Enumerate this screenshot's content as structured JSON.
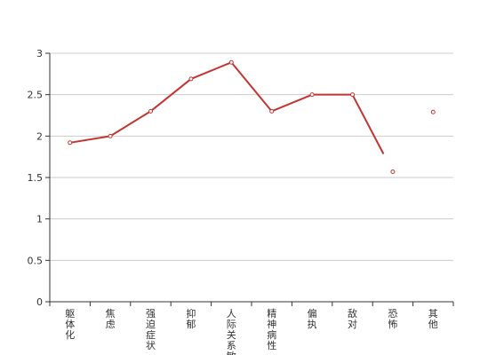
{
  "chart_data": {
    "type": "line",
    "title": "",
    "xlabel": "",
    "ylabel": "",
    "categories": [
      "躯体化",
      "焦虑",
      "强迫症状",
      "抑郁",
      "人际关系敏感",
      "精神病性",
      "偏执",
      "敌对",
      "恐怖",
      "其他"
    ],
    "series": [
      {
        "values": [
          1.92,
          2.0,
          2.3,
          2.69,
          2.89,
          2.3,
          2.5,
          2.5,
          1.57,
          2.29
        ]
      }
    ],
    "ylim": [
      0,
      3
    ],
    "yticks": [
      0,
      0.5,
      1,
      1.5,
      2,
      2.5,
      3
    ],
    "ytick_labels": [
      "0",
      "0.5",
      "1",
      "1.5",
      "2",
      "2.5",
      "3"
    ],
    "line_visible_segments": [
      [
        0,
        1
      ],
      [
        1,
        2
      ],
      [
        2,
        3
      ],
      [
        3,
        4
      ],
      [
        4,
        5
      ],
      [
        5,
        6
      ],
      [
        6,
        7
      ]
    ],
    "partial_segment": {
      "from": 7,
      "to": 8,
      "fraction": 0.77
    },
    "grid": true,
    "legend": "none",
    "colors": {
      "series": "#c23531",
      "grid": "#cccccc",
      "axis": "#333333",
      "text": "#333333"
    }
  }
}
